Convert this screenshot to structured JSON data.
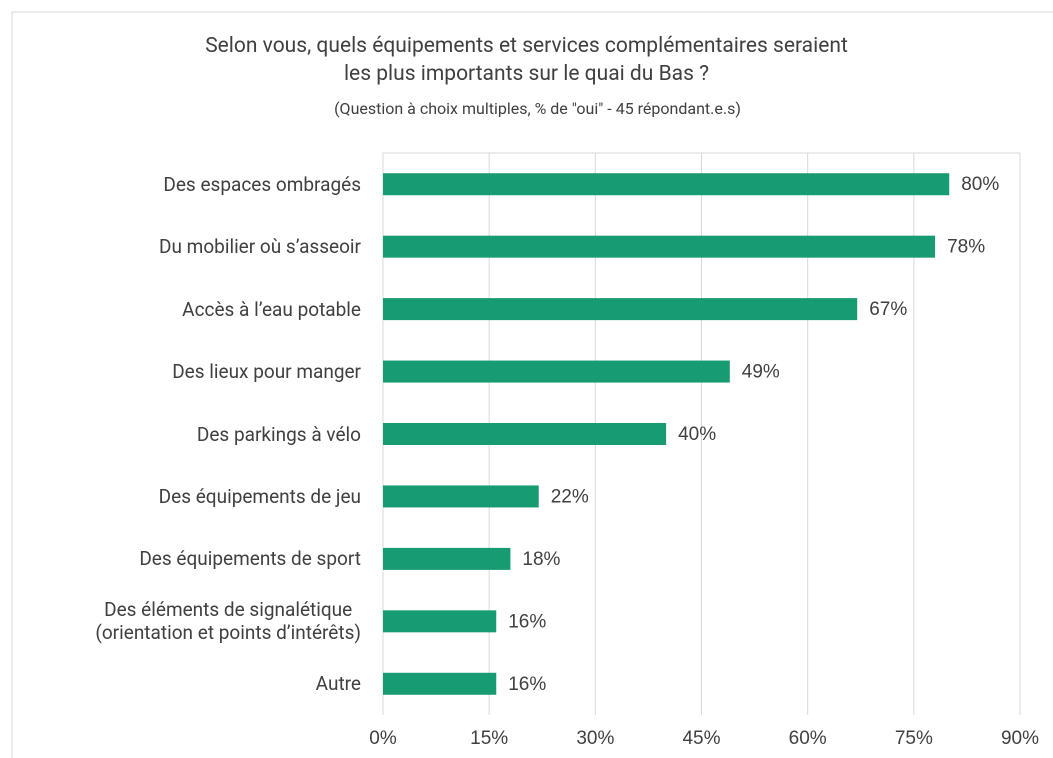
{
  "chart_data": {
    "type": "bar",
    "orientation": "horizontal",
    "title": "Selon vous, quels équipements et services complémentaires seraient\nles plus importants sur le quai du Bas ?",
    "subtitle": "(Question à choix multiples, % de \"oui\" - 45 répondant.e.s)",
    "categories": [
      "Des espaces ombragés",
      "Du mobilier où s’asseoir",
      "Accès à l’eau potable",
      "Des lieux pour manger",
      "Des parkings à vélo",
      "Des équipements de jeu",
      "Des équipements de sport",
      "Des éléments de signalétique\n(orientation et points d’intérêts)",
      "Autre"
    ],
    "values": [
      80,
      78,
      67,
      49,
      40,
      22,
      18,
      16,
      16
    ],
    "value_labels": [
      "80%",
      "78%",
      "67%",
      "49%",
      "40%",
      "22%",
      "18%",
      "16%",
      "16%"
    ],
    "color": "#169b72",
    "xlim": [
      0,
      90
    ],
    "xticks": [
      {
        "value": 0,
        "label": "0%"
      },
      {
        "value": 15,
        "label": "15%"
      },
      {
        "value": 30,
        "label": "30%"
      },
      {
        "value": 45,
        "label": "45%"
      },
      {
        "value": 60,
        "label": "60%"
      },
      {
        "value": 75,
        "label": "75%"
      },
      {
        "value": 90,
        "label": "90%"
      }
    ],
    "grid": true
  }
}
